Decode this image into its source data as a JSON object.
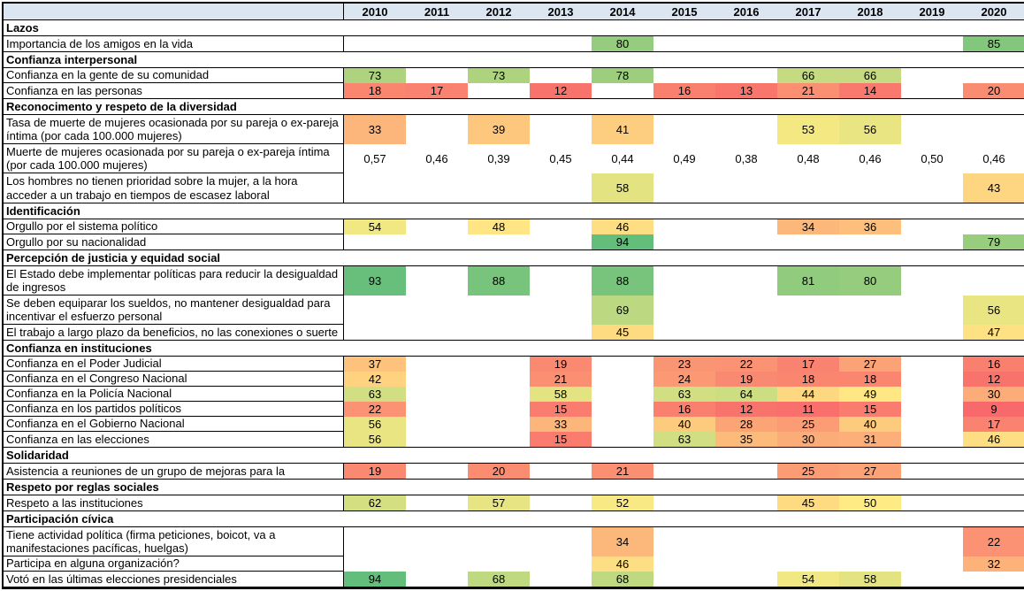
{
  "chart_data": {
    "type": "heatmap",
    "title": "",
    "columns": [
      "2010",
      "2011",
      "2012",
      "2013",
      "2014",
      "2015",
      "2016",
      "2017",
      "2018",
      "2019",
      "2020"
    ],
    "legend": "cell fill encodes value: red=low, yellow=mid, green=high",
    "color_scale": {
      "min": 9,
      "mid": 50,
      "max": 94,
      "min_color": "#F8696B",
      "mid_color": "#FFEB84",
      "max_color": "#63BE7B"
    },
    "header_bg": "#DCE6F1",
    "border_color": "#000000",
    "sections": [
      {
        "title": "Lazos",
        "rows": [
          {
            "label": "Importancia de los amigos en la vida",
            "lines": 1,
            "values": [
              null,
              null,
              null,
              null,
              80,
              null,
              null,
              null,
              null,
              null,
              85
            ]
          }
        ]
      },
      {
        "title": "Confianza interpersonal",
        "rows": [
          {
            "label": "Confianza en la gente de su comunidad",
            "lines": 1,
            "values": [
              73,
              null,
              73,
              null,
              78,
              null,
              null,
              66,
              66,
              null,
              null
            ]
          },
          {
            "label": "Confianza en las personas",
            "lines": 1,
            "values": [
              18,
              17,
              null,
              12,
              null,
              16,
              13,
              21,
              14,
              null,
              20
            ]
          }
        ]
      },
      {
        "title": "Reconocimento y respeto de la diversidad",
        "rows": [
          {
            "label": "Tasa de muerte de mujeres ocasionada por su pareja o ex-pareja íntima (por cada 100.000 mujeres)",
            "lines": 2,
            "values": [
              33,
              null,
              39,
              null,
              41,
              null,
              null,
              53,
              56,
              null,
              null
            ]
          },
          {
            "label": "Muerte de mujeres ocasionada por su pareja o ex-pareja íntima (por cada 100.000 mujeres)",
            "lines": 2,
            "values": [
              "0,57",
              "0,46",
              "0,39",
              "0,45",
              "0,44",
              "0,49",
              "0,38",
              "0,48",
              "0,46",
              "0,50",
              "0,46"
            ]
          },
          {
            "label": "Los hombres no tienen prioridad sobre la mujer, a la hora acceder a un trabajo en tiempos de escasez laboral",
            "lines": 2,
            "values": [
              null,
              null,
              null,
              null,
              58,
              null,
              null,
              null,
              null,
              null,
              43
            ]
          }
        ]
      },
      {
        "title": "Identificación",
        "rows": [
          {
            "label": "Orgullo por el sistema político",
            "lines": 1,
            "values": [
              54,
              null,
              48,
              null,
              46,
              null,
              null,
              34,
              36,
              null,
              null
            ]
          },
          {
            "label": "Orgullo por su nacionalidad",
            "lines": 1,
            "values": [
              null,
              null,
              null,
              null,
              94,
              null,
              null,
              null,
              null,
              null,
              79
            ]
          }
        ]
      },
      {
        "title": "Percepción de justicia y equidad social",
        "rows": [
          {
            "label": "El Estado debe implementar políticas para reducir la desigualdad de ingresos",
            "lines": 2,
            "values": [
              93,
              null,
              88,
              null,
              88,
              null,
              null,
              81,
              80,
              null,
              null
            ]
          },
          {
            "label": "Se deben equiparar los sueldos, no mantener desigualdad para incentivar el esfuerzo personal",
            "lines": 2,
            "values": [
              null,
              null,
              null,
              null,
              69,
              null,
              null,
              null,
              null,
              null,
              56
            ]
          },
          {
            "label": "El trabajo a largo plazo da beneficios, no las conexiones o suerte",
            "lines": 1,
            "values": [
              null,
              null,
              null,
              null,
              45,
              null,
              null,
              null,
              null,
              null,
              47
            ]
          }
        ]
      },
      {
        "title": "Confianza en instituciones",
        "rows": [
          {
            "label": "Confianza en el Poder Judicial",
            "lines": 1,
            "values": [
              37,
              null,
              null,
              19,
              null,
              23,
              22,
              17,
              27,
              null,
              16
            ]
          },
          {
            "label": "Confianza en el Congreso Nacional",
            "lines": 1,
            "values": [
              42,
              null,
              null,
              21,
              null,
              24,
              19,
              18,
              18,
              null,
              12
            ]
          },
          {
            "label": "Confianza en la Policía Nacional",
            "lines": 1,
            "values": [
              63,
              null,
              null,
              58,
              null,
              63,
              64,
              44,
              49,
              null,
              30
            ]
          },
          {
            "label": "Confianza en los partidos políticos",
            "lines": 1,
            "values": [
              22,
              null,
              null,
              15,
              null,
              16,
              12,
              11,
              15,
              null,
              9
            ]
          },
          {
            "label": "Confianza en el Gobierno Nacional",
            "lines": 1,
            "values": [
              56,
              null,
              null,
              33,
              null,
              40,
              28,
              25,
              40,
              null,
              17
            ]
          },
          {
            "label": "Confianza en las elecciones",
            "lines": 1,
            "values": [
              56,
              null,
              null,
              15,
              null,
              63,
              35,
              30,
              31,
              null,
              46
            ]
          }
        ]
      },
      {
        "title": "Solidaridad",
        "rows": [
          {
            "label": "Asistencia a reuniones de un grupo de mejoras para la",
            "lines": 1,
            "values": [
              19,
              null,
              20,
              null,
              21,
              null,
              null,
              25,
              27,
              null,
              null
            ]
          }
        ]
      },
      {
        "title": "Respeto por reglas sociales",
        "rows": [
          {
            "label": "Respeto a las instituciones",
            "lines": 1,
            "values": [
              62,
              null,
              57,
              null,
              52,
              null,
              null,
              45,
              50,
              null,
              null
            ]
          }
        ]
      },
      {
        "title": "Participación cívica",
        "rows": [
          {
            "label": "Tiene actividad política (firma peticiones, boicot, va a manifestaciones pacíficas, huelgas)",
            "lines": 2,
            "values": [
              null,
              null,
              null,
              null,
              34,
              null,
              null,
              null,
              null,
              null,
              22
            ]
          },
          {
            "label": "Participa en alguna organización?",
            "lines": 1,
            "values": [
              null,
              null,
              null,
              null,
              46,
              null,
              null,
              null,
              null,
              null,
              32
            ]
          },
          {
            "label": "Votó en las últimas elecciones presidenciales",
            "lines": 1,
            "values": [
              94,
              null,
              68,
              null,
              68,
              null,
              null,
              54,
              58,
              null,
              null
            ]
          }
        ]
      }
    ]
  }
}
